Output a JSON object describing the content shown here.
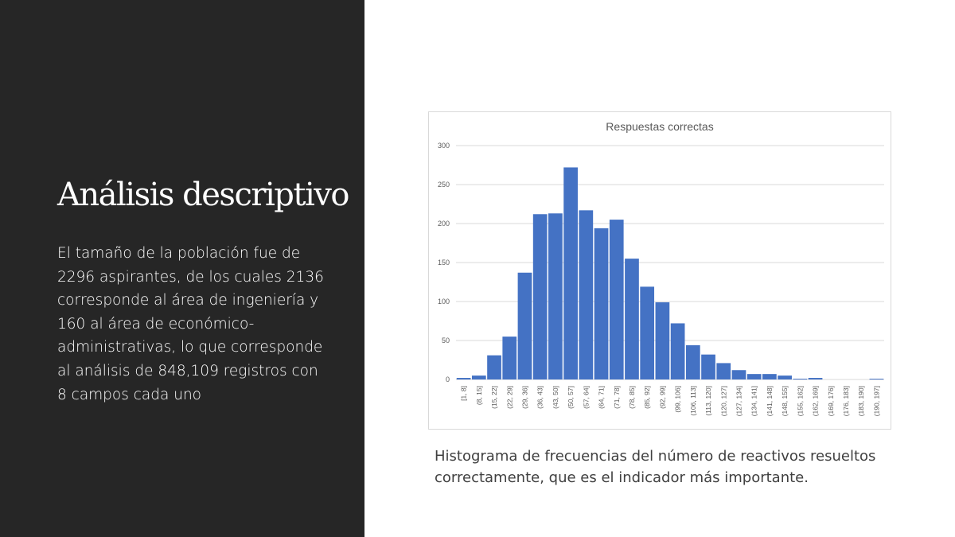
{
  "slide": {
    "title": "Análisis descriptivo",
    "body": "El tamaño de la población fue de 2296 aspirantes, de los cuales 2136 corresponde al área de ingeniería y 160 al área de económico-administrativas, lo que corresponde al análisis de 848,109 registros con 8 campos cada uno",
    "caption": "Histograma de frecuencias del número de reactivos resueltos correctamente, que es el indicador más importante."
  },
  "colors": {
    "panel": "#262626",
    "bar": "#4472c4",
    "grid": "#d9d9d9"
  },
  "chart_data": {
    "type": "bar",
    "title": "Respuestas correctas",
    "xlabel": "",
    "ylabel": "",
    "ylim": [
      0,
      300
    ],
    "yticks": [
      0,
      50,
      100,
      150,
      200,
      250,
      300
    ],
    "grid": true,
    "categories": [
      "[1, 8]",
      "(8, 15]",
      "(15, 22]",
      "(22, 29]",
      "(29, 36]",
      "(36, 43]",
      "(43, 50]",
      "(50, 57]",
      "(57, 64]",
      "(64, 71]",
      "(71, 78]",
      "(78, 85]",
      "(85, 92]",
      "(92, 99]",
      "(99, 106]",
      "(106, 113]",
      "(113, 120]",
      "(120, 127]",
      "(127, 134]",
      "(134, 141]",
      "(141, 148]",
      "(148, 155]",
      "(155, 162]",
      "(162, 169]",
      "(169, 176]",
      "(176, 183]",
      "(183, 190]",
      "(190, 197]"
    ],
    "values": [
      2,
      5,
      31,
      55,
      137,
      212,
      213,
      272,
      217,
      194,
      205,
      155,
      119,
      99,
      72,
      44,
      32,
      21,
      12,
      7,
      7,
      5,
      1,
      2,
      0,
      0,
      0,
      1
    ]
  }
}
